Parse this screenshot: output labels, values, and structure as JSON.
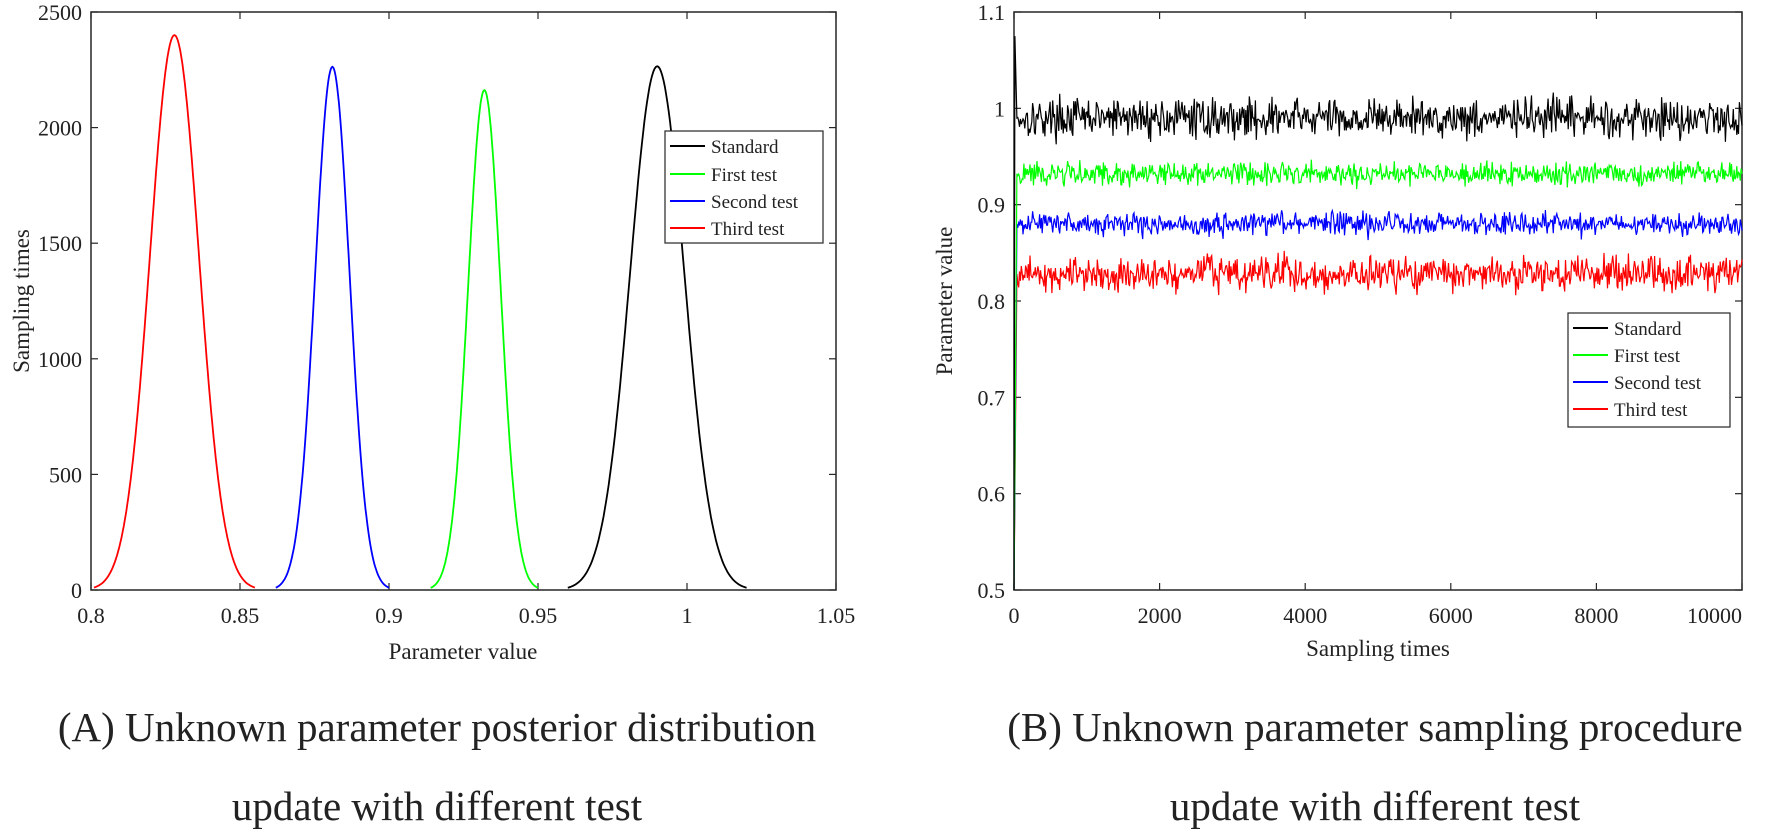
{
  "colors": {
    "Standard": "#000000",
    "First test": "#00ff00",
    "Second test": "#0000ff",
    "Third test": "#ff0000"
  },
  "captions": {
    "a_line1": "(A) Unknown parameter posterior distribution",
    "a_line2": "update with different test",
    "b_line1": "(B) Unknown parameter sampling procedure",
    "b_line2": "update with different test"
  },
  "chart_data": [
    {
      "type": "line",
      "xlabel": "Parameter value",
      "ylabel": "Sampling times",
      "xlim": [
        0.8,
        1.05
      ],
      "ylim": [
        0,
        2500
      ],
      "xticks": [
        "0.8",
        "0.85",
        "0.9",
        "0.95",
        "1",
        "1.05"
      ],
      "yticks": [
        "0",
        "500",
        "1000",
        "1500",
        "2000",
        "2500"
      ],
      "legend_position": "upper-right",
      "series": [
        {
          "name": "Standard",
          "color": "#000000",
          "peak_x": 0.99,
          "peak_y": 2265,
          "x_range": [
            0.96,
            1.02
          ]
        },
        {
          "name": "First test",
          "color": "#00ff00",
          "peak_x": 0.932,
          "peak_y": 2162,
          "x_range": [
            0.914,
            0.95
          ]
        },
        {
          "name": "Second test",
          "color": "#0000ff",
          "peak_x": 0.881,
          "peak_y": 2263,
          "x_range": [
            0.862,
            0.9
          ]
        },
        {
          "name": "Third test",
          "color": "#ff0000",
          "peak_x": 0.828,
          "peak_y": 2400,
          "x_range": [
            0.801,
            0.855
          ]
        }
      ]
    },
    {
      "type": "line",
      "xlabel": "Sampling times",
      "ylabel": "Parameter value",
      "xlim": [
        0,
        10000
      ],
      "ylim": [
        0.5,
        1.1
      ],
      "xticks": [
        "0",
        "2000",
        "4000",
        "6000",
        "8000",
        "10000"
      ],
      "yticks": [
        "0.5",
        "0.6",
        "0.7",
        "0.8",
        "0.9",
        "1",
        "1.1"
      ],
      "legend_position": "right",
      "series": [
        {
          "name": "Standard",
          "color": "#000000",
          "mean": 0.99,
          "band": [
            0.96,
            1.02
          ],
          "start": 0.5,
          "initial_spike": 1.075
        },
        {
          "name": "First test",
          "color": "#00ff00",
          "mean": 0.932,
          "band": [
            0.915,
            0.95
          ],
          "start": 0.5
        },
        {
          "name": "Second test",
          "color": "#0000ff",
          "mean": 0.88,
          "band": [
            0.865,
            0.9
          ],
          "start": 0.5
        },
        {
          "name": "Third test",
          "color": "#ff0000",
          "mean": 0.828,
          "band": [
            0.8,
            0.855
          ],
          "start": 0.5
        }
      ]
    }
  ]
}
